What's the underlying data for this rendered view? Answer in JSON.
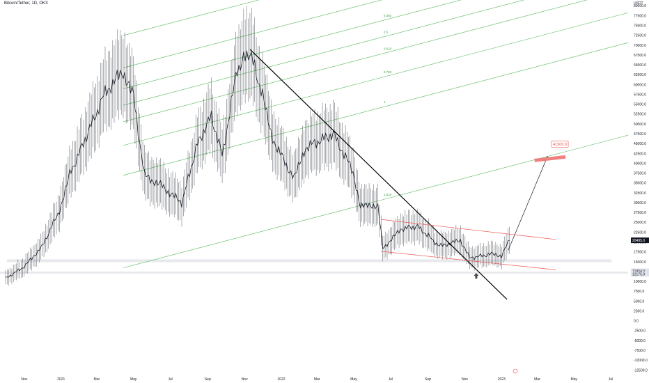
{
  "header": {
    "title": "Bitcoin/Tether, 1D, OKX"
  },
  "colors": {
    "fib": "#6cc36f",
    "fib_label": "#43a047",
    "trendline": "#000000",
    "channel": "#ef5350",
    "target": "#f08080",
    "price_badge": "#131722",
    "candle": "#131722",
    "support_band": "#d1d4dc"
  },
  "chart_data": {
    "type": "candlestick",
    "title": "Bitcoin/Tether, 1D, OKX",
    "y_unit": "USDT",
    "ylim": [
      -12500,
      80000
    ],
    "y_ticks": [
      "80000.0",
      "77500.0",
      "75000.0",
      "72500.0",
      "70000.0",
      "67500.0",
      "65000.0",
      "62500.0",
      "60000.0",
      "57500.0",
      "55000.0",
      "52500.0",
      "50000.0",
      "47500.0",
      "45000.0",
      "42500.0",
      "40000.0",
      "37500.0",
      "35000.0",
      "32500.0",
      "30000.0",
      "27500.0",
      "25000.0",
      "22500.0",
      "20000.0",
      "17500.0",
      "15000.0",
      "12500.0",
      "10000.0",
      "7500.0",
      "5000.0",
      "2500.0",
      "0.0",
      "-2500.0",
      "-5000.0",
      "-7500.0",
      "-10000.0",
      "-12500.0"
    ],
    "x_ticks": [
      "Nov",
      "2021",
      "Mar",
      "May",
      "Jul",
      "Sep",
      "Nov",
      "2022",
      "Mar",
      "May",
      "Jul",
      "Sep",
      "Nov",
      "2023",
      "Mar",
      "May",
      "Jul"
    ],
    "price_path": [
      {
        "date": "2020-10-01",
        "close": 10800
      },
      {
        "date": "2020-11-01",
        "close": 13800
      },
      {
        "date": "2020-12-01",
        "close": 19000
      },
      {
        "date": "2021-01-01",
        "close": 29000
      },
      {
        "date": "2021-01-15",
        "close": 37000
      },
      {
        "date": "2021-02-15",
        "close": 48000
      },
      {
        "date": "2021-03-15",
        "close": 58000
      },
      {
        "date": "2021-04-14",
        "close": 63500
      },
      {
        "date": "2021-05-01",
        "close": 57000
      },
      {
        "date": "2021-05-19",
        "close": 37000
      },
      {
        "date": "2021-06-15",
        "close": 34500
      },
      {
        "date": "2021-07-20",
        "close": 30000
      },
      {
        "date": "2021-08-15",
        "close": 45000
      },
      {
        "date": "2021-09-07",
        "close": 52000
      },
      {
        "date": "2021-09-25",
        "close": 42000
      },
      {
        "date": "2021-10-20",
        "close": 64000
      },
      {
        "date": "2021-11-10",
        "close": 68500
      },
      {
        "date": "2021-12-01",
        "close": 57000
      },
      {
        "date": "2021-12-15",
        "close": 47000
      },
      {
        "date": "2022-01-22",
        "close": 36000
      },
      {
        "date": "2022-02-10",
        "close": 44000
      },
      {
        "date": "2022-03-28",
        "close": 47500
      },
      {
        "date": "2022-04-30",
        "close": 38000
      },
      {
        "date": "2022-05-12",
        "close": 29000
      },
      {
        "date": "2022-06-10",
        "close": 29500
      },
      {
        "date": "2022-06-18",
        "close": 18500
      },
      {
        "date": "2022-07-20",
        "close": 23500
      },
      {
        "date": "2022-08-15",
        "close": 24000
      },
      {
        "date": "2022-09-20",
        "close": 19000
      },
      {
        "date": "2022-10-25",
        "close": 20500
      },
      {
        "date": "2022-11-09",
        "close": 16000
      },
      {
        "date": "2022-12-15",
        "close": 17000
      },
      {
        "date": "2023-01-01",
        "close": 16600
      },
      {
        "date": "2023-01-14",
        "close": 20495
      }
    ],
    "current_price": "20495.0",
    "price_badges": [
      "12454.0",
      "12175.9"
    ],
    "fib_levels": [
      {
        "label": "0",
        "price": 72500
      },
      {
        "label": "0.236",
        "price": 64300
      },
      {
        "label": "0.382",
        "price": 59000
      },
      {
        "label": "0.5",
        "price": 54800
      },
      {
        "label": "0.618",
        "price": 50600
      },
      {
        "label": "0.786",
        "price": 44600
      },
      {
        "label": "1",
        "price": 37000
      },
      {
        "label": "1.618",
        "price": 13500
      }
    ],
    "fib_anchor_date": "2021-04-14",
    "fib_slope_per_month": 1240,
    "downtrend_line": {
      "from": {
        "date": "2021-11-10",
        "price": 69000
      },
      "to": {
        "date": "2023-01-10",
        "price": 5500
      }
    },
    "red_channel": {
      "upper": {
        "from": {
          "date": "2022-06-15",
          "price": 25800
        },
        "to": {
          "date": "2023-04-01",
          "price": 20700
        }
      },
      "lower": {
        "from": {
          "date": "2022-06-15",
          "price": 17700
        },
        "to": {
          "date": "2023-04-01",
          "price": 13000
        }
      }
    },
    "support_band": {
      "price": 15300
    },
    "support_band2": {
      "price": 12300
    },
    "projection": {
      "from": {
        "date": "2023-01-12",
        "price": 18000
      },
      "to": {
        "date": "2023-04-01",
        "price": 41800
      }
    },
    "target": {
      "label": "41500.0",
      "price": 41500,
      "from_date": "2023-03-15",
      "to_date": "2023-04-10"
    },
    "arrow_marker": {
      "date": "2022-11-20",
      "price": 11500
    }
  }
}
